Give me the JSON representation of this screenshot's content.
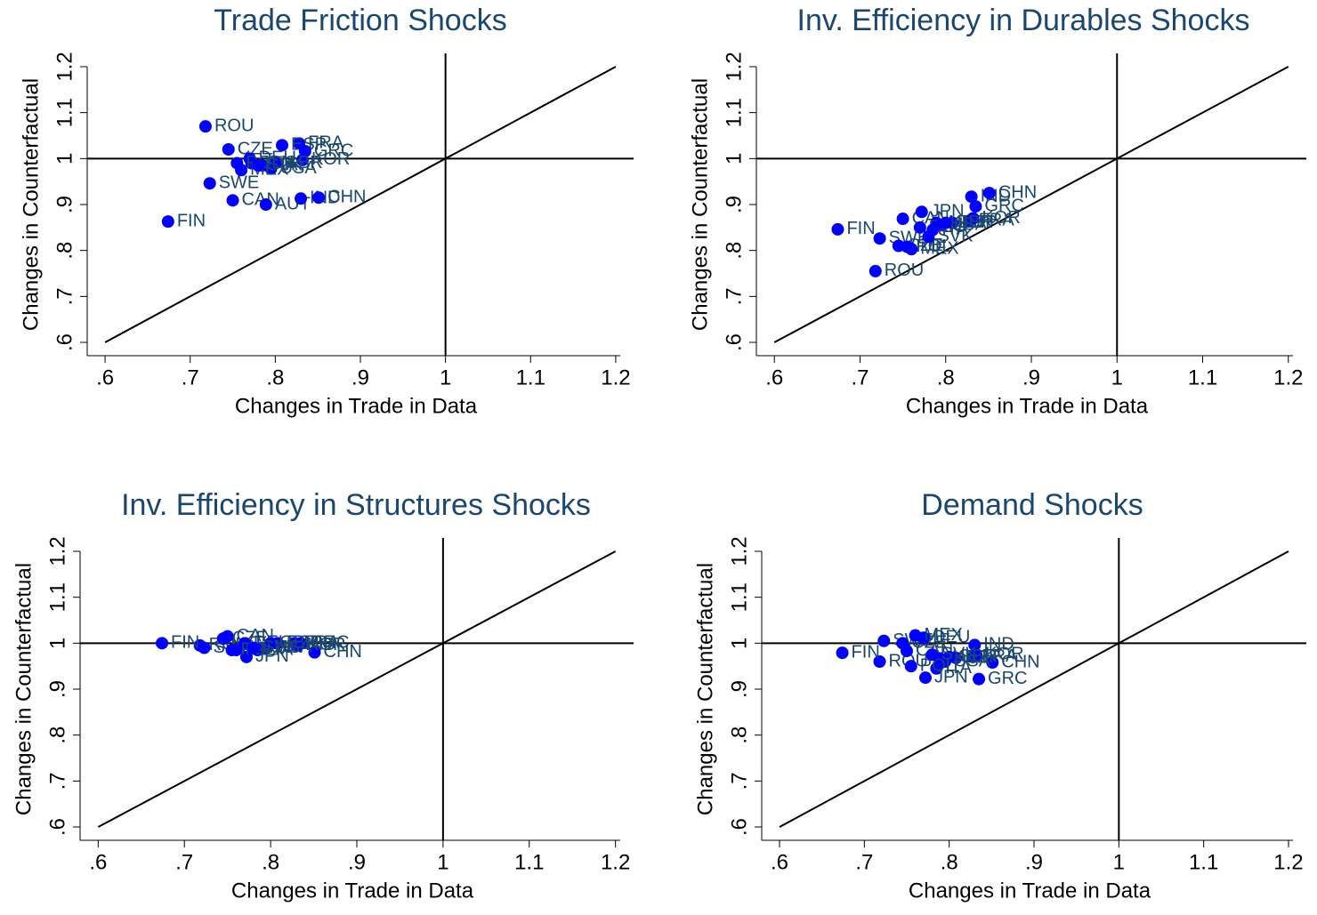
{
  "chart_data": [
    {
      "type": "scatter",
      "title": "Trade Friction Shocks",
      "x_label": "Changes in Trade in Data",
      "y_label": "Changes in Counterfactual",
      "point_labels": [
        "ROU",
        "FIN",
        "SWE",
        "CAN",
        "AUT",
        "IND",
        "CHN",
        "FRA",
        "ESP",
        "GRC",
        "KOR",
        "CZE",
        "DEU",
        "ITA",
        "USA",
        "JPN",
        "MEX",
        "GBR",
        "POL",
        "SVK"
      ],
      "x": [
        0.718,
        0.674,
        0.723,
        0.75,
        0.789,
        0.83,
        0.851,
        0.828,
        0.808,
        0.835,
        0.832,
        0.745,
        0.77,
        0.785,
        0.795,
        0.772,
        0.76,
        0.8,
        0.755,
        0.78
      ],
      "values": [
        1.07,
        0.863,
        0.946,
        0.909,
        0.9,
        0.913,
        0.915,
        1.033,
        1.029,
        1.016,
        0.997,
        1.02,
        1.0,
        0.985,
        0.978,
        0.99,
        0.975,
        0.99,
        0.99,
        0.985
      ],
      "color": "#0000ff",
      "label_color": "#1a476f",
      "xlim": [
        0.579,
        1.221
      ],
      "ylim": [
        0.571,
        1.229
      ],
      "xticks": [
        {
          "value": 0.6,
          "label": ".6"
        },
        {
          "value": 0.7,
          "label": ".7"
        },
        {
          "value": 0.8,
          "label": ".8"
        },
        {
          "value": 0.9,
          "label": ".9"
        },
        1,
        1.1,
        1.2
      ],
      "yticks": [
        {
          "value": 0.6,
          "label": ".6"
        },
        {
          "value": 0.7,
          "label": ".7"
        },
        {
          "value": 0.8,
          "label": ".8"
        },
        {
          "value": 0.9,
          "label": ".9"
        },
        1,
        1.1,
        1.2
      ],
      "reference_lines": {
        "x": 1,
        "y": 1,
        "diagonal": [
          0.6,
          1.2
        ]
      }
    },
    {
      "type": "scatter",
      "title": "Inv. Efficiency in Durables Shocks",
      "x_label": "Changes in Trade in Data",
      "y_label": "Changes in Counterfactual",
      "point_labels": [
        "ROU",
        "FIN",
        "SWE",
        "CAN",
        "AUT",
        "IND",
        "CHN",
        "FRA",
        "ESP",
        "GRC",
        "KOR",
        "CZE",
        "DEU",
        "ITA",
        "USA",
        "JPN",
        "MEX",
        "GBR",
        "POL",
        "SVK"
      ],
      "x": [
        0.718,
        0.674,
        0.723,
        0.75,
        0.789,
        0.83,
        0.851,
        0.828,
        0.808,
        0.835,
        0.832,
        0.745,
        0.77,
        0.785,
        0.795,
        0.772,
        0.76,
        0.8,
        0.755,
        0.78
      ],
      "values": [
        0.755,
        0.846,
        0.826,
        0.869,
        0.86,
        0.917,
        0.925,
        0.865,
        0.86,
        0.896,
        0.87,
        0.81,
        0.85,
        0.845,
        0.855,
        0.884,
        0.803,
        0.86,
        0.808,
        0.83
      ],
      "color": "#0000ff",
      "label_color": "#1a476f",
      "xlim": [
        0.579,
        1.221
      ],
      "ylim": [
        0.571,
        1.229
      ],
      "xticks": [
        {
          "value": 0.6,
          "label": ".6"
        },
        {
          "value": 0.7,
          "label": ".7"
        },
        {
          "value": 0.8,
          "label": ".8"
        },
        {
          "value": 0.9,
          "label": ".9"
        },
        1,
        1.1,
        1.2
      ],
      "yticks": [
        {
          "value": 0.6,
          "label": ".6"
        },
        {
          "value": 0.7,
          "label": ".7"
        },
        {
          "value": 0.8,
          "label": ".8"
        },
        {
          "value": 0.9,
          "label": ".9"
        },
        1,
        1.1,
        1.2
      ],
      "reference_lines": {
        "x": 1,
        "y": 1,
        "diagonal": [
          0.6,
          1.2
        ]
      }
    },
    {
      "type": "scatter",
      "title": "Inv. Efficiency in Structures Shocks",
      "x_label": "Changes in Trade in Data",
      "y_label": "Changes in Counterfactual",
      "point_labels": [
        "ROU",
        "FIN",
        "SWE",
        "CAN",
        "AUT",
        "IND",
        "CHN",
        "FRA",
        "ESP",
        "GRC",
        "KOR",
        "CZE",
        "DEU",
        "ITA",
        "USA",
        "JPN",
        "MEX",
        "GBR",
        "POL",
        "SVK"
      ],
      "x": [
        0.718,
        0.674,
        0.723,
        0.75,
        0.789,
        0.83,
        0.851,
        0.828,
        0.808,
        0.835,
        0.832,
        0.745,
        0.77,
        0.785,
        0.795,
        0.772,
        0.76,
        0.8,
        0.755,
        0.78
      ],
      "values": [
        0.995,
        1.0,
        0.99,
        1.015,
        0.99,
        0.995,
        0.98,
        1.0,
        1.0,
        1.0,
        0.995,
        1.01,
        1.0,
        0.985,
        0.99,
        0.97,
        0.985,
        1.0,
        0.985,
        0.99
      ],
      "color": "#0000ff",
      "label_color": "#1a476f",
      "xlim": [
        0.579,
        1.221
      ],
      "ylim": [
        0.571,
        1.229
      ],
      "xticks": [
        {
          "value": 0.6,
          "label": ".6"
        },
        {
          "value": 0.7,
          "label": ".7"
        },
        {
          "value": 0.8,
          "label": ".8"
        },
        {
          "value": 0.9,
          "label": ".9"
        },
        1,
        1.1,
        1.2
      ],
      "yticks": [
        {
          "value": 0.6,
          "label": ".6"
        },
        {
          "value": 0.7,
          "label": ".7"
        },
        {
          "value": 0.8,
          "label": ".8"
        },
        {
          "value": 0.9,
          "label": ".9"
        },
        1,
        1.1,
        1.2
      ],
      "reference_lines": {
        "x": 1,
        "y": 1,
        "diagonal": [
          0.6,
          1.2
        ]
      }
    },
    {
      "type": "scatter",
      "title": "Demand Shocks",
      "x_label": "Changes in Trade in Data",
      "y_label": "Changes in Counterfactual",
      "point_labels": [
        "ROU",
        "FIN",
        "SWE",
        "CAN",
        "AUT",
        "IND",
        "CHN",
        "FRA",
        "ESP",
        "GRC",
        "KOR",
        "CZE",
        "DEU",
        "ITA",
        "USA",
        "JPN",
        "MEX",
        "GBR",
        "POL",
        "SVK"
      ],
      "x": [
        0.718,
        0.674,
        0.723,
        0.75,
        0.789,
        0.83,
        0.851,
        0.828,
        0.808,
        0.835,
        0.832,
        0.745,
        0.77,
        0.785,
        0.795,
        0.772,
        0.76,
        0.8,
        0.755,
        0.78
      ],
      "values": [
        0.96,
        0.979,
        1.005,
        0.983,
        0.967,
        0.996,
        0.958,
        0.97,
        0.968,
        0.922,
        0.975,
        1.0,
        1.012,
        0.945,
        0.96,
        0.925,
        1.017,
        0.97,
        0.95,
        0.975
      ],
      "color": "#0000ff",
      "label_color": "#1a476f",
      "xlim": [
        0.579,
        1.221
      ],
      "ylim": [
        0.571,
        1.229
      ],
      "xticks": [
        {
          "value": 0.6,
          "label": ".6"
        },
        {
          "value": 0.7,
          "label": ".7"
        },
        {
          "value": 0.8,
          "label": ".8"
        },
        {
          "value": 0.9,
          "label": ".9"
        },
        1,
        1.1,
        1.2
      ],
      "yticks": [
        {
          "value": 0.6,
          "label": ".6"
        },
        {
          "value": 0.7,
          "label": ".7"
        },
        {
          "value": 0.8,
          "label": ".8"
        },
        {
          "value": 0.9,
          "label": ".9"
        },
        1,
        1.1,
        1.2
      ],
      "reference_lines": {
        "x": 1,
        "y": 1,
        "diagonal": [
          0.6,
          1.2
        ]
      }
    }
  ]
}
